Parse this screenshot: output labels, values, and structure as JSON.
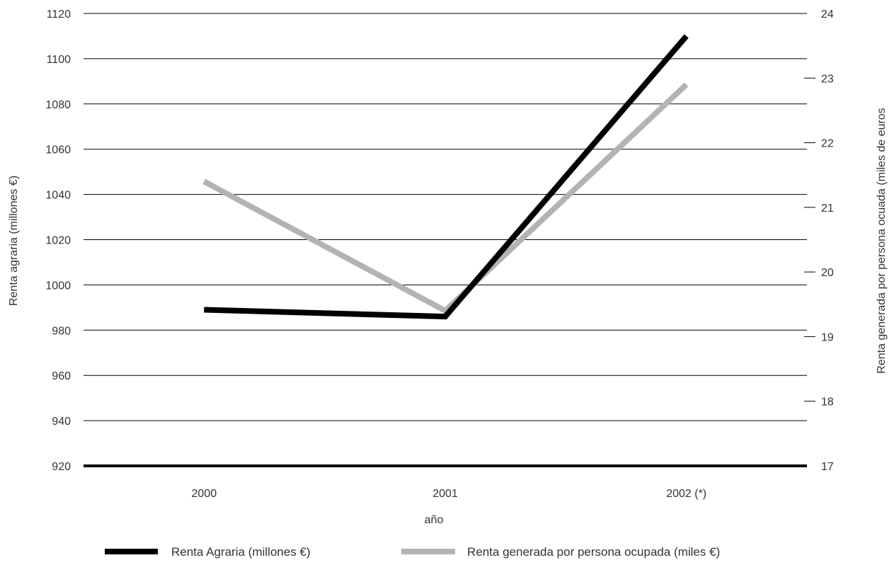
{
  "chart_data": {
    "type": "line",
    "title": "",
    "categories": [
      "2000",
      "2001",
      "2002 (*)"
    ],
    "xlabel": "año",
    "ylabel_left": "Renta agraria (millones €)",
    "ylabel_right": "Renta generada por persona ocuada (miles de euros",
    "y_left_range": [
      920,
      1120
    ],
    "y_left_ticks": [
      920,
      940,
      960,
      980,
      1000,
      1020,
      1040,
      1060,
      1080,
      1100,
      1120
    ],
    "y_right_range": [
      17,
      24
    ],
    "y_right_ticks": [
      17,
      18,
      19,
      20,
      21,
      22,
      23,
      24
    ],
    "grid": true,
    "legend_position": "bottom",
    "series": [
      {
        "name": "Renta Agraria (millones €)",
        "axis": "left",
        "color": "#000000",
        "values": [
          989,
          986,
          1110
        ]
      },
      {
        "name": "Renta generada por persona ocupada (miles €)",
        "axis": "right",
        "color": "#b3b3b3",
        "values": [
          21.4,
          19.4,
          22.9
        ]
      }
    ]
  }
}
